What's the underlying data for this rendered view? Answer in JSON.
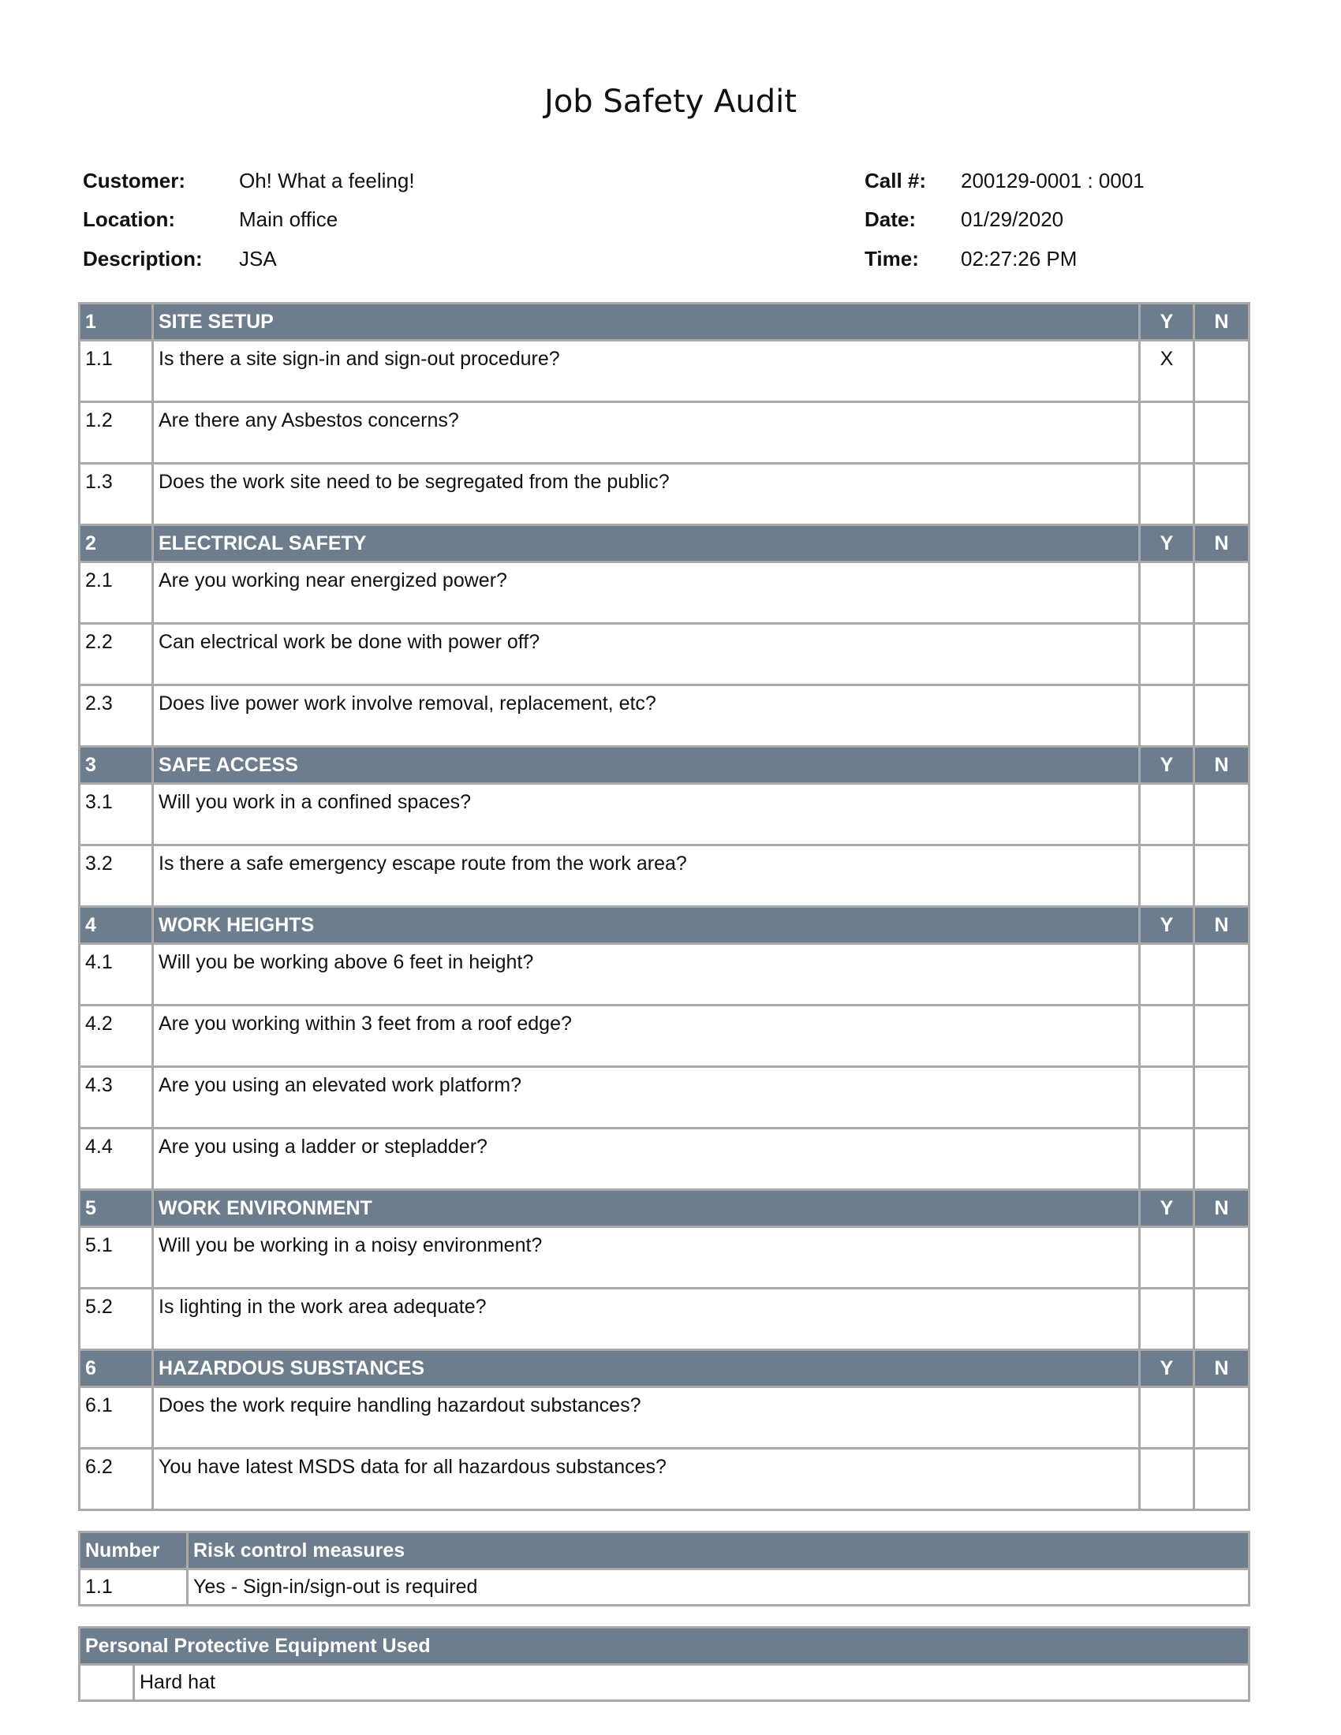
{
  "title": "Job Safety Audit",
  "header": {
    "left": [
      {
        "label": "Customer:",
        "value": "Oh! What a feeling!"
      },
      {
        "label": "Location:",
        "value": "Main office"
      },
      {
        "label": "Description:",
        "value": "JSA"
      }
    ],
    "right": [
      {
        "label": "Call #:",
        "value": "200129-0001 : 0001"
      },
      {
        "label": "Date:",
        "value": "01/29/2020"
      },
      {
        "label": "Time:",
        "value": "02:27:26 PM"
      }
    ]
  },
  "sections": [
    {
      "number": "1",
      "title": "SITE SETUP",
      "y": "Y",
      "n": "N",
      "items": [
        {
          "number": "1.1",
          "question": "Is there a site sign-in and sign-out procedure?",
          "y": "X"
        },
        {
          "number": "1.2",
          "question": "Are there any Asbestos concerns?"
        },
        {
          "number": "1.3",
          "question": "Does the work site need to be segregated from the public?"
        }
      ]
    },
    {
      "number": "2",
      "title": "ELECTRICAL SAFETY",
      "y": "Y",
      "n": "N",
      "items": [
        {
          "number": "2.1",
          "question": "Are you working near energized power?"
        },
        {
          "number": "2.2",
          "question": "Can electrical work be done with power off?"
        },
        {
          "number": "2.3",
          "question": "Does live power work involve removal, replacement, etc?"
        }
      ]
    },
    {
      "number": "3",
      "title": "SAFE ACCESS",
      "y": "Y",
      "n": "N",
      "items": [
        {
          "number": "3.1",
          "question": "Will you work in a confined spaces?"
        },
        {
          "number": "3.2",
          "question": "Is there a safe emergency escape route from the work area?"
        }
      ]
    },
    {
      "number": "4",
      "title": "WORK HEIGHTS",
      "y": "Y",
      "n": "N",
      "items": [
        {
          "number": "4.1",
          "question": "Will you be working above 6 feet in height?"
        },
        {
          "number": "4.2",
          "question": "Are you working within 3 feet from a roof edge?"
        },
        {
          "number": "4.3",
          "question": "Are you using an elevated work platform?"
        },
        {
          "number": "4.4",
          "question": "Are you using a ladder or stepladder?"
        }
      ]
    },
    {
      "number": "5",
      "title": "WORK ENVIRONMENT",
      "y": "Y",
      "n": "N",
      "items": [
        {
          "number": "5.1",
          "question": "Will you be working in a noisy environment?"
        },
        {
          "number": "5.2",
          "question": "Is lighting in the work area adequate?"
        }
      ]
    },
    {
      "number": "6",
      "title": "HAZARDOUS SUBSTANCES",
      "y": "Y",
      "n": "N",
      "items": [
        {
          "number": "6.1",
          "question": "Does the work require handling hazardout substances?"
        },
        {
          "number": "6.2",
          "question": "You have latest MSDS data for all hazardous substances?"
        }
      ]
    }
  ],
  "risk": {
    "headers": [
      "Number",
      "Risk control measures"
    ],
    "rows": [
      [
        "1.1",
        "Yes - Sign-in/sign-out is required"
      ]
    ]
  },
  "ppe": {
    "header": "Personal Protective Equipment Used",
    "items": [
      "Hard hat"
    ]
  }
}
